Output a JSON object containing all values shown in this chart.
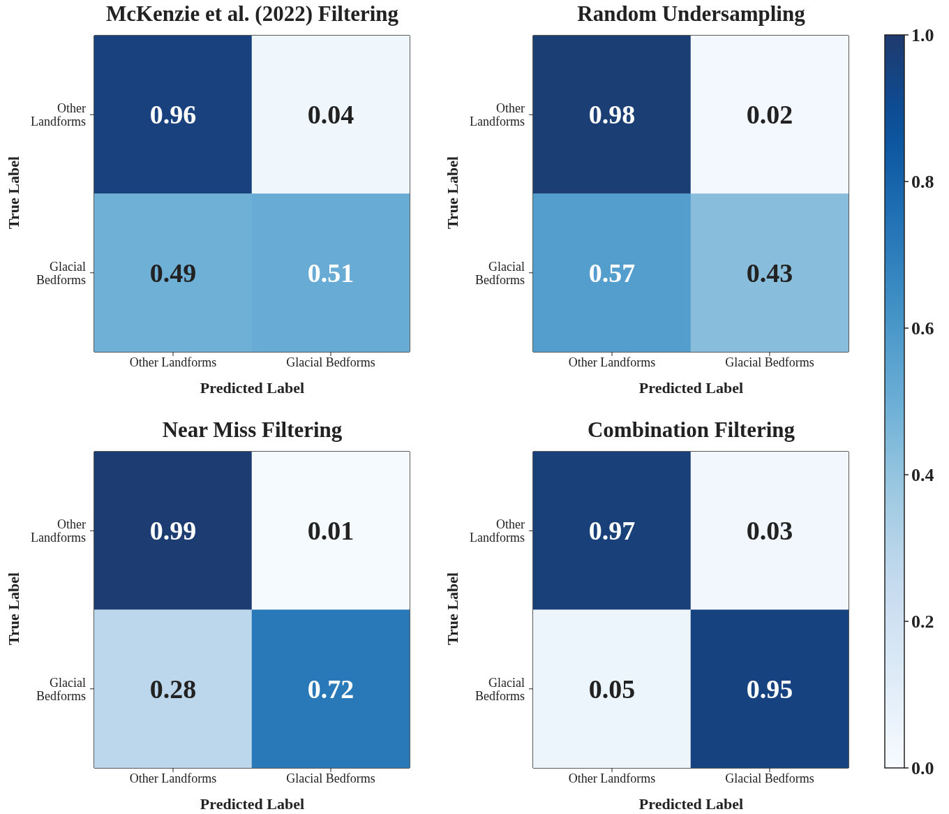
{
  "chart_data": [
    {
      "type": "heatmap",
      "title": "McKenzie et al. (2022) Filtering",
      "xlabel": "Predicted Label",
      "ylabel": "True Label",
      "categories": [
        "Other Landforms",
        "Glacial Bedforms"
      ],
      "y_categories": [
        "Other Landforms",
        "Glacial Bedforms"
      ],
      "cells": [
        [
          0.96,
          0.04
        ],
        [
          0.49,
          0.51
        ]
      ],
      "data_labels": true
    },
    {
      "type": "heatmap",
      "title": "Random Undersampling",
      "xlabel": "Predicted Label",
      "ylabel": "True Label",
      "categories": [
        "Other Landforms",
        "Glacial Bedforms"
      ],
      "y_categories": [
        "Other Landforms",
        "Glacial Bedforms"
      ],
      "cells": [
        [
          0.98,
          0.02
        ],
        [
          0.57,
          0.43
        ]
      ],
      "data_labels": true
    },
    {
      "type": "heatmap",
      "title": "Near Miss Filtering",
      "xlabel": "Predicted Label",
      "ylabel": "True Label",
      "categories": [
        "Other Landforms",
        "Glacial Bedforms"
      ],
      "y_categories": [
        "Other Landforms",
        "Glacial Bedforms"
      ],
      "cells": [
        [
          0.99,
          0.01
        ],
        [
          0.28,
          0.72
        ]
      ],
      "data_labels": true
    },
    {
      "type": "heatmap",
      "title": "Combination Filtering",
      "xlabel": "Predicted Label",
      "ylabel": "True Label",
      "categories": [
        "Other Landforms",
        "Glacial Bedforms"
      ],
      "y_categories": [
        "Other Landforms",
        "Glacial Bedforms"
      ],
      "cells": [
        [
          0.97,
          0.03
        ],
        [
          0.05,
          0.95
        ]
      ],
      "data_labels": true,
      "clim": [
        0,
        1
      ],
      "cticks": [
        {
          "value": 0,
          "label": "0.0"
        },
        {
          "value": 0.2,
          "label": "0.2"
        },
        {
          "value": 0.4,
          "label": "0.4"
        },
        {
          "value": 0.6,
          "label": "0.6"
        },
        {
          "value": 0.8,
          "label": "0.8"
        },
        {
          "value": 1,
          "label": "1.0"
        }
      ]
    }
  ]
}
